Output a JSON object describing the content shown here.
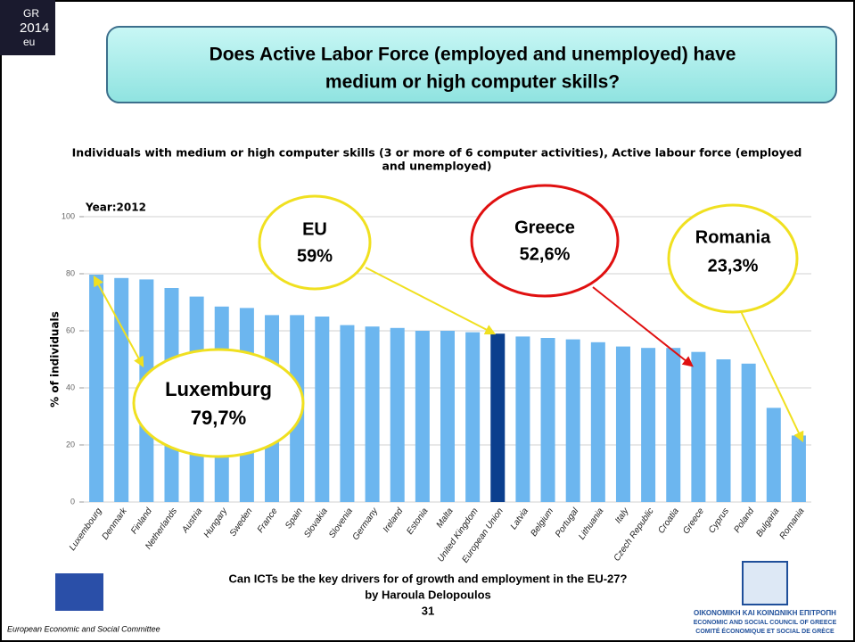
{
  "slide": {
    "logo": [
      "GR",
      "2014",
      "eu"
    ],
    "title": [
      "Does Active Labor Force (employed and unemployed) have",
      "medium or high computer skills?"
    ],
    "callouts": [
      {
        "name": "EU",
        "value": "59%"
      },
      {
        "name": "Greece",
        "value": "52,6%"
      },
      {
        "name": "Romania",
        "value": "23,3%"
      },
      {
        "name": "Luxemburg",
        "value": "79,7%"
      }
    ],
    "footer": [
      "Can ICTs be the key drivers for of growth and employment in the EU-27?",
      "by Haroula Delopoulos",
      "31"
    ],
    "left_logo_caption": "European Economic and Social Committee",
    "right_logo_caption": [
      "ΟΙΚΟΝΟΜΙΚΗ ΚΑΙ ΚΟΙΝΩΝΙΚΗ ΕΠΙΤΡΟΠΗ",
      "ECONOMIC AND SOCIAL COUNCIL OF GREECE",
      "COMITÉ ÉCONOMIQUE ET SOCIAL DE GRÈCE"
    ]
  },
  "chart_data": {
    "type": "bar",
    "title": [
      "Individuals with medium or high computer skills (3 or more of 6 computer activities), Active labour force (employed",
      "and unemployed)"
    ],
    "subtitle": "Year:2012",
    "y_label": "% of individuals",
    "categories": [
      "Luxembourg",
      "Denmark",
      "Finland",
      "Netherlands",
      "Austria",
      "Hungary",
      "Sweden",
      "France",
      "Spain",
      "Slovakia",
      "Slovenia",
      "Germany",
      "Ireland",
      "Estonia",
      "Malta",
      "United Kingdom",
      "European Union",
      "Latvia",
      "Belgium",
      "Portugal",
      "Lithuania",
      "Italy",
      "Czech Republic",
      "Croatia",
      "Greece",
      "Cyprus",
      "Poland",
      "Bulgaria",
      "Romania"
    ],
    "values": [
      79.7,
      78.5,
      78,
      75,
      72,
      68.5,
      68,
      65.5,
      65.5,
      65,
      62,
      61.5,
      61,
      60,
      60,
      59.5,
      59,
      58,
      57.5,
      57,
      56,
      54.5,
      54,
      54,
      52.6,
      50,
      48.5,
      33,
      23.3
    ],
    "colors": [
      "#6cb6ef",
      "#6cb6ef",
      "#6cb6ef",
      "#6cb6ef",
      "#6cb6ef",
      "#6cb6ef",
      "#6cb6ef",
      "#6cb6ef",
      "#6cb6ef",
      "#6cb6ef",
      "#6cb6ef",
      "#6cb6ef",
      "#6cb6ef",
      "#6cb6ef",
      "#6cb6ef",
      "#6cb6ef",
      "#0b3f8e",
      "#6cb6ef",
      "#6cb6ef",
      "#6cb6ef",
      "#6cb6ef",
      "#6cb6ef",
      "#6cb6ef",
      "#6cb6ef",
      "#6cb6ef",
      "#6cb6ef",
      "#6cb6ef",
      "#6cb6ef",
      "#6cb6ef"
    ],
    "ylim": [
      0,
      100
    ],
    "yticks": [
      0,
      20,
      40,
      60,
      80,
      100
    ],
    "grid": true
  }
}
